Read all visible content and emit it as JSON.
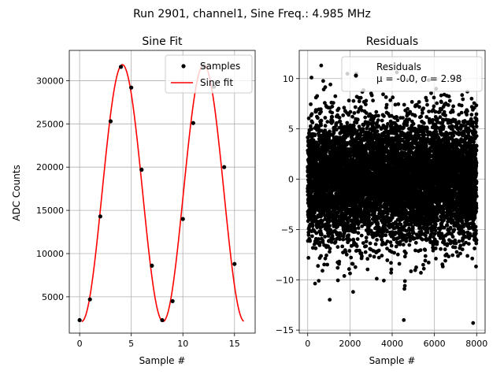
{
  "suptitle": "Run 2901, channel1, Sine Freq.: 4.985 MHz",
  "chart_data": [
    {
      "type": "scatter+line",
      "title": "Sine Fit",
      "xlabel": "Sample #",
      "ylabel": "ADC Counts",
      "xlim": [
        -1,
        17
      ],
      "ylim": [
        800,
        33500
      ],
      "xticks": [
        0,
        5,
        10,
        15
      ],
      "yticks": [
        5000,
        10000,
        15000,
        20000,
        25000,
        30000
      ],
      "grid": true,
      "legend_placement": "top-right",
      "series": [
        {
          "name": "Samples",
          "kind": "scatter",
          "color": "#000000",
          "x": [
            0,
            1,
            2,
            3,
            4,
            5,
            6,
            7,
            8,
            9,
            10,
            11,
            12,
            13,
            14,
            15
          ],
          "y": [
            2300,
            4700,
            14300,
            25300,
            31600,
            29200,
            19700,
            8600,
            2300,
            4500,
            14000,
            25100,
            31700,
            29300,
            20000,
            8800
          ]
        },
        {
          "name": "Sine fit",
          "kind": "line",
          "color": "#ff0000",
          "model": {
            "offset": 17000,
            "amplitude": 14850,
            "period": 7.88,
            "x_start": 0.2,
            "x_end": 15.9,
            "phase_origin": 2.17
          }
        }
      ]
    },
    {
      "type": "scatter",
      "title": "Residuals",
      "xlabel": "Sample #",
      "xlim": [
        -400,
        8400
      ],
      "ylim": [
        -15.3,
        12.8
      ],
      "xticks": [
        0,
        2000,
        4000,
        6000,
        8000
      ],
      "yticks": [
        -15,
        -10,
        -5,
        0,
        5,
        10
      ],
      "grid": true,
      "legend_placement": "top-right",
      "legend_title": "Residuals",
      "legend_text": "μ = -0.0, σ = 2.98",
      "series": [
        {
          "kind": "scatter",
          "color": "#000000",
          "n_points": 8000,
          "x_range": [
            0,
            8000
          ],
          "mean": 0.0,
          "sigma": 2.98,
          "outliers": [
            [
              640,
              11.3
            ],
            [
              2300,
              10.5
            ],
            [
              180,
              10.1
            ],
            [
              4550,
              -14
            ],
            [
              4600,
              -10.6
            ],
            [
              4580,
              -10.9
            ],
            [
              3950,
              -9.3
            ],
            [
              5500,
              -8.9
            ],
            [
              700,
              -9.1
            ]
          ]
        }
      ]
    }
  ]
}
